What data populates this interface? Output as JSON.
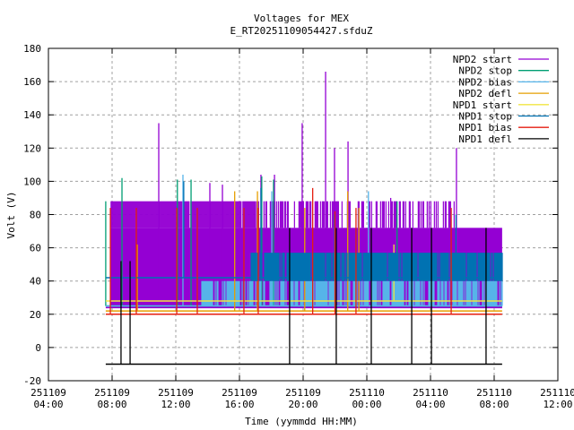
{
  "chart_data": {
    "type": "line",
    "title": "Voltages for MEX",
    "subtitle": "E_RT20251109054427.sfduZ",
    "xlabel": "Time (yymmdd HH:MM)",
    "ylabel": "Volt (V)",
    "x_unit": "hours since 251109 00:00",
    "xlim": [
      4,
      36
    ],
    "ylim": [
      -20,
      180
    ],
    "grid": true,
    "legend_position": "top-right",
    "y_ticks": [
      "-20",
      "0",
      "20",
      "40",
      "60",
      "80",
      "100",
      "120",
      "140",
      "160",
      "180"
    ],
    "x_ticks": [
      {
        "t": 4,
        "date": "251109",
        "time": "04:00"
      },
      {
        "t": 8,
        "date": "251109",
        "time": "08:00"
      },
      {
        "t": 12,
        "date": "251109",
        "time": "12:00"
      },
      {
        "t": 16,
        "date": "251109",
        "time": "16:00"
      },
      {
        "t": 20,
        "date": "251109",
        "time": "20:00"
      },
      {
        "t": 24,
        "date": "251110",
        "time": "00:00"
      },
      {
        "t": 28,
        "date": "251110",
        "time": "04:00"
      },
      {
        "t": 32,
        "date": "251110",
        "time": "08:00"
      },
      {
        "t": 36,
        "date": "251110",
        "time": "12:00"
      }
    ],
    "series": [
      {
        "name": "NPD2 start",
        "color": "#9400d3",
        "level": 24,
        "t_range": [
          7.6,
          32.5
        ],
        "bands": [
          {
            "t0": 7.9,
            "t1": 32.5,
            "lo": 24,
            "hi": 72,
            "density": 1
          },
          {
            "t0": 7.9,
            "t1": 17.0,
            "lo": 72,
            "hi": 88,
            "density": 0.97
          },
          {
            "t0": 17.0,
            "t1": 29.5,
            "lo": 72,
            "hi": 88,
            "density": 0.55
          }
        ],
        "spikes": [
          [
            10.93,
            135
          ],
          [
            21.41,
            166
          ],
          [
            19.94,
            135
          ],
          [
            22.82,
            124
          ],
          [
            21.97,
            120
          ],
          [
            29.63,
            120
          ],
          [
            14.14,
            99
          ],
          [
            14.93,
            98
          ],
          [
            18.2,
            104
          ],
          [
            17.35,
            104
          ],
          [
            25.5,
            90
          ]
        ]
      },
      {
        "name": "NPD2 stop",
        "color": "#009e73",
        "level": 25,
        "t_range": [
          7.6,
          32.5
        ],
        "bands": [],
        "spikes": [
          [
            7.6,
            88
          ],
          [
            8.62,
            102
          ],
          [
            12.1,
            101
          ],
          [
            12.96,
            101
          ],
          [
            18.14,
            101
          ],
          [
            17.4,
            103
          ],
          [
            25.9,
            88
          ]
        ]
      },
      {
        "name": "NPD2 bias",
        "color": "#56b4e9",
        "level": 25,
        "t_range": [
          7.6,
          32.5
        ],
        "bands": [
          {
            "t0": 13.6,
            "t1": 32.5,
            "lo": 25,
            "hi": 40,
            "density": 0.7
          }
        ],
        "spikes": [
          [
            12.45,
            104
          ],
          [
            18.03,
            94
          ],
          [
            24.1,
            94
          ]
        ]
      },
      {
        "name": "NPD2 defl",
        "color": "#e69f00",
        "level": 22,
        "t_range": [
          7.6,
          32.5
        ],
        "bands": [],
        "spikes": [
          [
            9.58,
            62
          ],
          [
            15.7,
            94
          ],
          [
            17.13,
            94
          ],
          [
            22.8,
            94
          ],
          [
            20.1,
            84
          ],
          [
            23.5,
            84
          ]
        ]
      },
      {
        "name": "NPD1 start",
        "color": "#f0e442",
        "level": 28,
        "t_range": [
          7.6,
          32.5
        ],
        "bands": [],
        "spikes": [
          [
            25.7,
            62
          ]
        ]
      },
      {
        "name": "NPD1 stop",
        "color": "#0072b2",
        "level": 42,
        "t_range": [
          7.6,
          32.5
        ],
        "bands": [
          {
            "t0": 16.7,
            "t1": 32.5,
            "lo": 40,
            "hi": 57,
            "density": 0.9
          }
        ],
        "spikes": [
          [
            17.35,
            96
          ],
          [
            21.97,
            80
          ],
          [
            29.6,
            80
          ],
          [
            12.5,
            100
          ]
        ]
      },
      {
        "name": "NPD1 bias",
        "color": "#e51e10",
        "level": 20,
        "t_range": [
          7.6,
          32.5
        ],
        "bands": [],
        "spikes": [
          [
            7.89,
            84
          ],
          [
            9.52,
            84
          ],
          [
            12.06,
            84
          ],
          [
            13.35,
            84
          ],
          [
            16.28,
            84
          ],
          [
            17.18,
            84
          ],
          [
            20.6,
            96
          ],
          [
            23.32,
            84
          ],
          [
            22.0,
            82
          ],
          [
            29.3,
            84
          ]
        ]
      },
      {
        "name": "NPD1 defl",
        "color": "#000000",
        "level": -10,
        "t_range": [
          7.6,
          32.5
        ],
        "bands": [],
        "spikes": [
          [
            8.56,
            52
          ],
          [
            9.13,
            52
          ],
          [
            19.15,
            72
          ],
          [
            22.08,
            72
          ],
          [
            24.28,
            72
          ],
          [
            26.82,
            72
          ],
          [
            28.06,
            72
          ],
          [
            31.49,
            72
          ]
        ]
      }
    ]
  }
}
